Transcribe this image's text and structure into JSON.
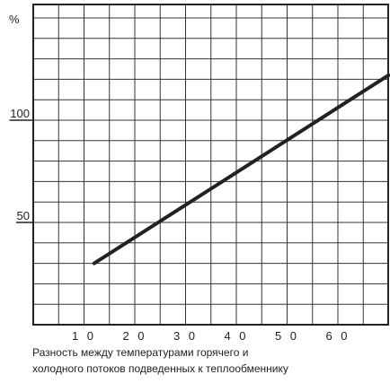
{
  "chart_data": {
    "type": "line",
    "x": [
      12,
      70
    ],
    "y": [
      30,
      122
    ],
    "xlim": [
      0,
      70
    ],
    "ylim": [
      0,
      150
    ],
    "grid": true,
    "ylabel": "%",
    "xticks": [
      10,
      20,
      30,
      40,
      50,
      60
    ],
    "xtick_labels": [
      "1 0",
      "2 0",
      "3 0",
      "4 0",
      "5 0",
      "6 0"
    ],
    "yticks": [
      50,
      100
    ],
    "ytick_labels": [
      "50",
      "100"
    ],
    "xlabel_lines": [
      "Разность между температурами горячего и",
      "холодного потоков подведенных к теплообменнику"
    ]
  },
  "colors": {
    "line": "#222222",
    "grid": "#333333",
    "background": "#ffffff"
  }
}
